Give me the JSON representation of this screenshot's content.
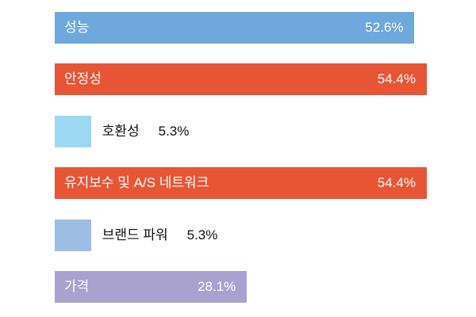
{
  "chart_data": {
    "type": "bar",
    "orientation": "horizontal",
    "categories": [
      "성능",
      "안정성",
      "호환성",
      "유지보수 및 A/S 네트워크",
      "브랜드 파워",
      "가격"
    ],
    "values": [
      52.6,
      54.4,
      5.3,
      54.4,
      5.3,
      28.1
    ],
    "value_labels": [
      "52.6%",
      "54.4%",
      "5.3%",
      "54.4%",
      "5.3%",
      "28.1%"
    ],
    "colors": [
      "#6fa8dc",
      "#e85535",
      "#9dd8f3",
      "#e85535",
      "#9ebde3",
      "#a9a1d0"
    ],
    "unit": "%",
    "xlim": [
      0,
      60
    ],
    "grid": false,
    "legend": "none"
  }
}
